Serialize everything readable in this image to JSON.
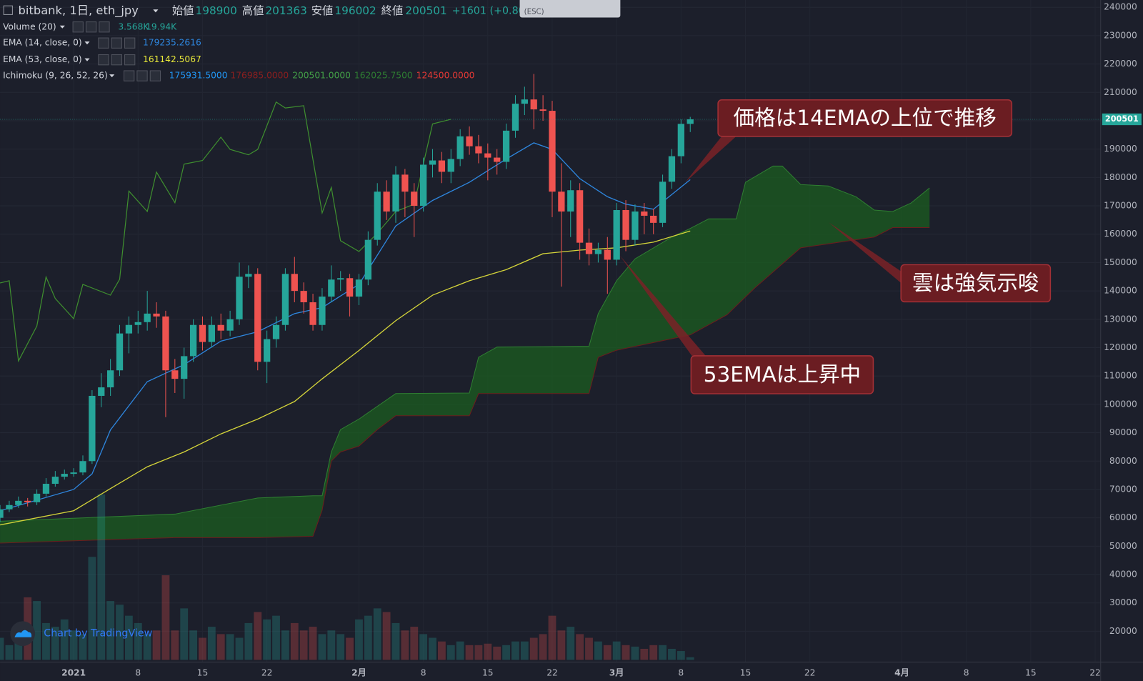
{
  "chart_data": {
    "type": "candlestick",
    "title": "bitbank, 1日, eth_jpy",
    "ohlc_labels": [
      "始値",
      "高値",
      "安値",
      "終値"
    ],
    "change": "+1601 (+0.80",
    "up_color": "#26a69a",
    "down_color": "#ef5350",
    "open": [
      60000,
      63000,
      64500,
      66000,
      65500,
      68500,
      72000,
      74500,
      75500,
      76000,
      80000,
      103000,
      106000,
      112000,
      125000,
      128000,
      129000,
      132000,
      131000,
      112000,
      109000,
      117000,
      128000,
      122000,
      128000,
      126000,
      130000,
      145000,
      146000,
      115000,
      123000,
      128000,
      146000,
      140000,
      136000,
      128000,
      138000,
      144000,
      144500,
      138000,
      144000,
      158000,
      175000,
      168000,
      181000,
      175000,
      170000,
      184500,
      186000,
      182000,
      186500,
      194500,
      191000,
      188500,
      187000,
      185500,
      196500,
      206000,
      207500,
      204000,
      203500,
      175000,
      168000,
      175500,
      157000,
      153000,
      154500,
      151000,
      168500,
      158000,
      168000,
      166500,
      164000,
      178500,
      187500,
      198900
    ],
    "high": [
      64500,
      66000,
      67500,
      67000,
      70000,
      74000,
      76500,
      77000,
      77500,
      82000,
      105000,
      111000,
      116000,
      128000,
      131000,
      133000,
      140000,
      136000,
      133000,
      116000,
      120000,
      130000,
      131000,
      131000,
      132000,
      133000,
      150000,
      149000,
      148000,
      126000,
      131000,
      148000,
      152000,
      143000,
      139000,
      141000,
      149000,
      147000,
      146000,
      146000,
      161000,
      178000,
      179000,
      184000,
      183000,
      178000,
      187000,
      190000,
      189000,
      190000,
      197000,
      198000,
      195000,
      192000,
      190000,
      199000,
      209000,
      212000,
      216500,
      209000,
      207000,
      185000,
      179000,
      178000,
      162000,
      157000,
      159000,
      171000,
      172000,
      170500,
      171000,
      169000,
      181000,
      190000,
      200500,
      201363
    ],
    "low": [
      58500,
      62000,
      63500,
      64000,
      64500,
      67500,
      71000,
      73500,
      74500,
      75000,
      79000,
      99000,
      103000,
      110000,
      118000,
      125000,
      126000,
      127000,
      95500,
      104000,
      102000,
      115000,
      119000,
      120000,
      123000,
      124000,
      128000,
      141000,
      112000,
      107500,
      120000,
      126000,
      136000,
      132000,
      126000,
      126000,
      136000,
      140000,
      131000,
      135000,
      142000,
      156000,
      165000,
      164000,
      166000,
      159000,
      168000,
      180000,
      178000,
      178000,
      184000,
      188000,
      185000,
      179000,
      181000,
      183000,
      194000,
      202000,
      197000,
      200000,
      166000,
      141500,
      159000,
      151000,
      149000,
      150000,
      139000,
      149000,
      154000,
      156000,
      160000,
      160000,
      162500,
      176000,
      185000,
      196002
    ],
    "close": [
      63000,
      64500,
      66000,
      65500,
      68500,
      72000,
      74500,
      75500,
      76000,
      80000,
      103000,
      106000,
      112000,
      125000,
      128000,
      129000,
      132000,
      131000,
      112000,
      109000,
      117000,
      128000,
      122000,
      128000,
      126000,
      130000,
      145000,
      146000,
      115000,
      123000,
      128000,
      146000,
      140000,
      136000,
      128000,
      138000,
      144000,
      144500,
      138000,
      144000,
      158000,
      175000,
      168000,
      181000,
      175000,
      170000,
      184500,
      186000,
      182000,
      186500,
      194500,
      191000,
      188500,
      187000,
      185500,
      196500,
      206000,
      207500,
      204000,
      203500,
      175000,
      168000,
      175500,
      157000,
      153000,
      154500,
      151000,
      168500,
      158000,
      168000,
      166500,
      164000,
      178500,
      187500,
      198900,
      200501
    ],
    "volume": {
      "name": "Volume (20)",
      "value_label": "3.568K",
      "ma_label": "19.94K",
      "values": [
        30000,
        20000,
        40000,
        85000,
        80000,
        50000,
        45000,
        55000,
        40000,
        35000,
        140000,
        225000,
        80000,
        75000,
        60000,
        50000,
        35000,
        40000,
        115000,
        40000,
        70000,
        40000,
        30000,
        45000,
        35000,
        35000,
        30000,
        50000,
        65000,
        55000,
        60000,
        40000,
        50000,
        40000,
        45000,
        35000,
        40000,
        35000,
        30000,
        55000,
        60000,
        70000,
        65000,
        50000,
        40000,
        45000,
        35000,
        30000,
        25000,
        20000,
        25000,
        20000,
        20000,
        22000,
        18000,
        20000,
        25000,
        25000,
        30000,
        35000,
        60000,
        40000,
        45000,
        35000,
        30000,
        25000,
        20000,
        25000,
        20000,
        18000,
        15000,
        20000,
        20000,
        15000,
        12000,
        3568
      ]
    },
    "overlays": [
      {
        "name": "EMA (14, close, 0)",
        "color": "#2e86de",
        "x": [
          0,
          8,
          10,
          12,
          16,
          20,
          24,
          28,
          32,
          35,
          39,
          43,
          47,
          51,
          55,
          58,
          60,
          63,
          66,
          68,
          71,
          75
        ],
        "values": [
          62500,
          70000,
          75500,
          91000,
          108000,
          114000,
          122300,
          125600,
          132000,
          134100,
          142300,
          162900,
          171900,
          178300,
          186500,
          192200,
          189900,
          179600,
          173200,
          170600,
          168800,
          179235.2616
        ]
      },
      {
        "name": "EMA (53, close, 0)",
        "color": "#d4d43a",
        "x": [
          0,
          8,
          12,
          16,
          20,
          24,
          28,
          32,
          35,
          39,
          43,
          47,
          51,
          55,
          59,
          63,
          67,
          71,
          75
        ],
        "values": [
          57500,
          62500,
          70300,
          78000,
          83200,
          89600,
          94800,
          101000,
          109000,
          119000,
          129500,
          138500,
          143600,
          147500,
          153100,
          154400,
          155200,
          157200,
          161142.5067
        ]
      }
    ],
    "ichimoku": {
      "name": "Ichimoku (9, 26, 52, 26)",
      "value_labels": [
        "175931.5000",
        "176985.0000",
        "200501.0000",
        "162025.7500",
        "124500.0000"
      ],
      "label_colors": [
        "#2196f3",
        "#8b1f1f",
        "#43a047",
        "#2e7d32",
        "#e53935"
      ],
      "cloud_color": "#1b5e20",
      "lagging": {
        "color": "#3f8f2f",
        "x": [
          0,
          1,
          2,
          4,
          5,
          6,
          8,
          9,
          12,
          13,
          14,
          16,
          17,
          19,
          20,
          22,
          24,
          25,
          27,
          28,
          30,
          31,
          33,
          35,
          36,
          37,
          39,
          41,
          43,
          45,
          47,
          49
        ],
        "values": [
          142800,
          143600,
          115300,
          127600,
          144900,
          137300,
          130200,
          142300,
          138500,
          144100,
          175200,
          168000,
          181900,
          171100,
          184700,
          186000,
          194200,
          189900,
          188000,
          189900,
          206600,
          204500,
          205300,
          167500,
          176500,
          157700,
          153900,
          160300,
          168000,
          170600,
          198900,
          200501
        ]
      },
      "span_a": {
        "color": "#2f7d32",
        "x": [
          0,
          19,
          28,
          34,
          35,
          36,
          37,
          39,
          43,
          51,
          52,
          54,
          64,
          65,
          67,
          69,
          73,
          75,
          77,
          80,
          81,
          84,
          85,
          87,
          90,
          93,
          95,
          97,
          99,
          101
        ],
        "values": [
          58800,
          61300,
          67000,
          67800,
          67800,
          83200,
          91100,
          94800,
          103800,
          104000,
          116600,
          120200,
          120500,
          132000,
          143600,
          151300,
          159000,
          162025.75,
          165400,
          165400,
          178300,
          184000,
          184000,
          177500,
          177000,
          173200,
          168500,
          168000,
          171000,
          176300
        ]
      },
      "span_b": {
        "color": "#6b1d1d",
        "x": [
          0,
          19,
          28,
          34,
          35,
          36,
          37,
          39,
          41,
          43,
          51,
          52,
          64,
          65,
          67,
          71,
          75,
          79,
          82,
          87,
          95,
          97,
          101
        ],
        "values": [
          51100,
          53000,
          53000,
          53500,
          62700,
          80000,
          83200,
          85300,
          91100,
          96000,
          96000,
          103800,
          103800,
          116600,
          119100,
          121800,
          124500,
          131600,
          141000,
          155200,
          159000,
          162300,
          162300
        ]
      }
    },
    "ylim": [
      9150,
      242570
    ],
    "yticks": [
      20000,
      30000,
      40000,
      50000,
      60000,
      70000,
      80000,
      90000,
      100000,
      110000,
      120000,
      130000,
      140000,
      150000,
      160000,
      170000,
      180000,
      190000,
      200000,
      210000,
      220000,
      230000,
      240000
    ],
    "xlim": [
      0,
      119.6
    ],
    "xticks": [
      {
        "value": 8,
        "label": "2021"
      },
      {
        "value": 15,
        "label": "8"
      },
      {
        "value": 22,
        "label": "15"
      },
      {
        "value": 29,
        "label": "22"
      },
      {
        "value": 39,
        "label": "2月"
      },
      {
        "value": 46,
        "label": "8"
      },
      {
        "value": 53,
        "label": "15"
      },
      {
        "value": 60,
        "label": "22"
      },
      {
        "value": 67,
        "label": "3月"
      },
      {
        "value": 74,
        "label": "8"
      },
      {
        "value": 81,
        "label": "15"
      },
      {
        "value": 88,
        "label": "22"
      },
      {
        "value": 98,
        "label": "4月"
      },
      {
        "value": 105,
        "label": "8"
      },
      {
        "value": 112,
        "label": "15"
      },
      {
        "value": 119,
        "label": "22"
      }
    ]
  },
  "annotations": [
    {
      "text": "価格は14EMAの上位で推移"
    },
    {
      "text": "雲は強気示唆"
    },
    {
      "text": "53EMAは上昇中"
    }
  ],
  "popup": "(ESC)",
  "watermark": "Chart by TradingView"
}
